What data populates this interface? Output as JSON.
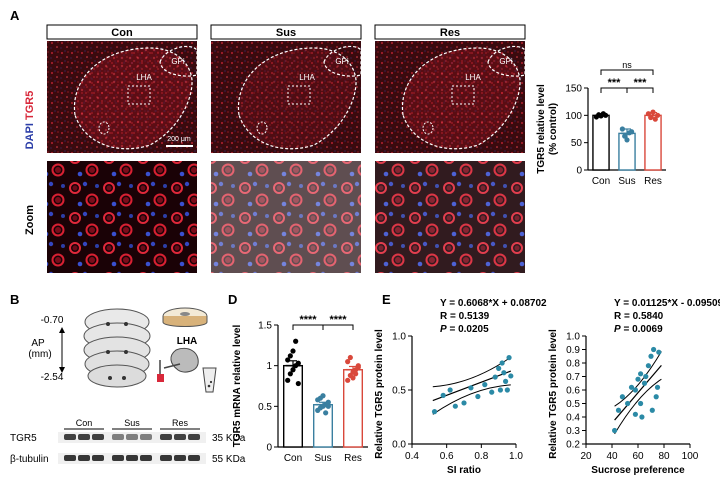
{
  "panels": {
    "A": "A",
    "B": "B",
    "D": "D",
    "E": "E"
  },
  "microscopy": {
    "conditions": [
      "Con",
      "Sus",
      "Res"
    ],
    "row_label_stain_blue": "DAPI",
    "row_label_stain_red": "TGR5",
    "row_label_zoom": "Zoom",
    "region_lha": "LHA",
    "region_gpi": "GPi",
    "scale_bar": "200 μm",
    "colors": {
      "red": "#d8283a",
      "blue": "#2c3ea8",
      "background": "#2a0508"
    }
  },
  "panel_b": {
    "ap_label": "AP",
    "ap_unit": "(mm)",
    "ap_top": "-0.70",
    "ap_bottom": "-2.54",
    "lha_label": "LHA",
    "blot": {
      "groups": [
        "Con",
        "Sus",
        "Res"
      ],
      "rows": [
        {
          "label": "TGR5",
          "size": "35 KDa"
        },
        {
          "label": "β-tubulin",
          "size": "55 KDa"
        }
      ]
    }
  },
  "colors": {
    "con": "#000000",
    "sus": "#3a7fa0",
    "res": "#d9483b",
    "scatter": "#2b8aa6"
  },
  "chart_data": [
    {
      "id": "A-bar",
      "type": "bar",
      "categories": [
        "Con",
        "Sus",
        "Res"
      ],
      "values": [
        100,
        67,
        100
      ],
      "errors": [
        3,
        8,
        5
      ],
      "points": [
        [
          97,
          101,
          99,
          103,
          100
        ],
        [
          75,
          62,
          55,
          68,
          70
        ],
        [
          103,
          96,
          106,
          93,
          100
        ]
      ],
      "ylabel": "TGR5 relative level\n(% control)",
      "ylim": [
        0,
        150
      ],
      "yticks": [
        0,
        50,
        100,
        150
      ],
      "significance": [
        {
          "from": 0,
          "to": 1,
          "label": "***"
        },
        {
          "from": 1,
          "to": 2,
          "label": "***"
        },
        {
          "from": 0,
          "to": 2,
          "label": "ns"
        }
      ]
    },
    {
      "id": "D-bar",
      "type": "bar",
      "categories": [
        "Con",
        "Sus",
        "Res"
      ],
      "values": [
        1.0,
        0.52,
        0.95
      ],
      "errors": [
        0.06,
        0.03,
        0.04
      ],
      "points": [
        [
          0.82,
          0.9,
          0.95,
          1.0,
          1.03,
          1.07,
          1.12,
          1.18,
          1.3,
          0.78
        ],
        [
          0.45,
          0.48,
          0.5,
          0.52,
          0.55,
          0.58,
          0.6,
          0.63,
          0.42,
          0.5
        ],
        [
          0.82,
          0.88,
          0.92,
          0.95,
          1.0,
          1.05,
          1.1,
          0.85,
          0.9,
          0.98
        ]
      ],
      "ylabel": "TGR5 mRNA relative level",
      "ylim": [
        0,
        1.5
      ],
      "yticks": [
        0,
        0.5,
        1.0,
        1.5
      ],
      "significance": [
        {
          "from": 0,
          "to": 1,
          "label": "****"
        },
        {
          "from": 1,
          "to": 2,
          "label": "****"
        }
      ]
    },
    {
      "id": "E-scatter-1",
      "type": "scatter",
      "equation": "Y = 0.6068*X + 0.08702",
      "r": "R = 0.5139",
      "p_label": "P",
      "p_value": " = 0.0205",
      "xlabel": "SI ratio",
      "ylabel": "Relative TGR5 protein level",
      "xlim": [
        0.4,
        1.0
      ],
      "ylim": [
        0,
        1.0
      ],
      "xticks": [
        0.4,
        0.6,
        0.8,
        1.0
      ],
      "yticks": [
        0.0,
        0.5,
        1.0
      ],
      "slope": 0.6068,
      "intercept": 0.08702,
      "fit_x": [
        0.52,
        0.97
      ],
      "x": [
        0.53,
        0.58,
        0.62,
        0.65,
        0.7,
        0.74,
        0.78,
        0.82,
        0.86,
        0.88,
        0.9,
        0.92,
        0.93,
        0.95,
        0.96,
        0.97,
        0.94,
        0.91
      ],
      "y": [
        0.3,
        0.45,
        0.5,
        0.35,
        0.38,
        0.52,
        0.44,
        0.55,
        0.48,
        0.62,
        0.7,
        0.75,
        0.66,
        0.5,
        0.8,
        0.63,
        0.58,
        0.5
      ]
    },
    {
      "id": "E-scatter-2",
      "type": "scatter",
      "equation": "Y = 0.01125*X - 0.09509",
      "r": "R = 0.5840",
      "p_label": "P",
      "p_value": " = 0.0069",
      "xlabel": "Sucrose preference",
      "ylabel": "Relative TGR5 protein level",
      "xlim": [
        20,
        100
      ],
      "ylim": [
        0.2,
        1.0
      ],
      "xticks": [
        20,
        40,
        60,
        80,
        100
      ],
      "yticks": [
        0.2,
        0.3,
        0.4,
        0.5,
        0.6,
        0.7,
        0.8,
        0.9,
        1.0
      ],
      "slope": 0.01125,
      "intercept": -0.09509,
      "fit_x": [
        42,
        78
      ],
      "x": [
        42,
        45,
        48,
        52,
        55,
        58,
        60,
        62,
        63,
        65,
        66,
        68,
        70,
        71,
        72,
        74,
        75,
        76,
        62,
        58
      ],
      "y": [
        0.3,
        0.45,
        0.55,
        0.5,
        0.62,
        0.6,
        0.68,
        0.72,
        0.4,
        0.65,
        0.7,
        0.78,
        0.85,
        0.45,
        0.9,
        0.55,
        0.62,
        0.88,
        0.5,
        0.42
      ]
    }
  ]
}
